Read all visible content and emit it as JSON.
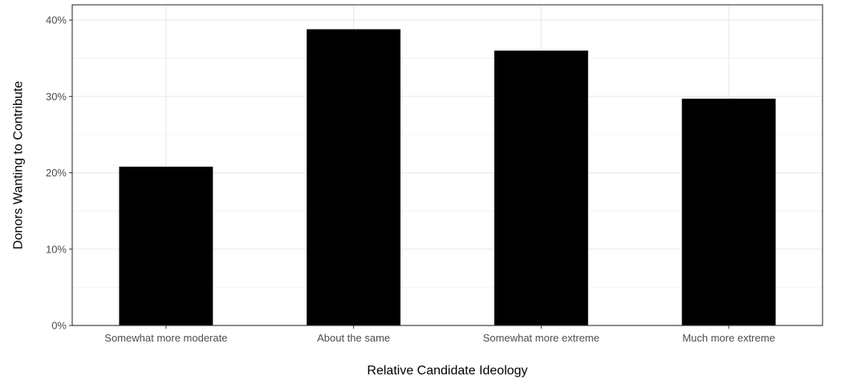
{
  "chart_data": {
    "type": "bar",
    "categories": [
      "Somewhat more moderate",
      "About the same",
      "Somewhat more extreme",
      "Much more extreme"
    ],
    "values": [
      20.8,
      38.8,
      36.0,
      29.7
    ],
    "title": "",
    "xlabel": "Relative Candidate Ideology",
    "ylabel": "Donors Wanting to Contribute",
    "ylim": [
      0,
      42
    ],
    "yticks": [
      0,
      10,
      20,
      30,
      40
    ],
    "ytick_labels": [
      "0%",
      "10%",
      "20%",
      "30%",
      "40%"
    ],
    "grid": true,
    "legend": "none",
    "colors": {
      "bar": "#000000",
      "grid": "#ebebeb",
      "panel_border": "#333333",
      "tick_text": "#4d4d4d"
    }
  }
}
